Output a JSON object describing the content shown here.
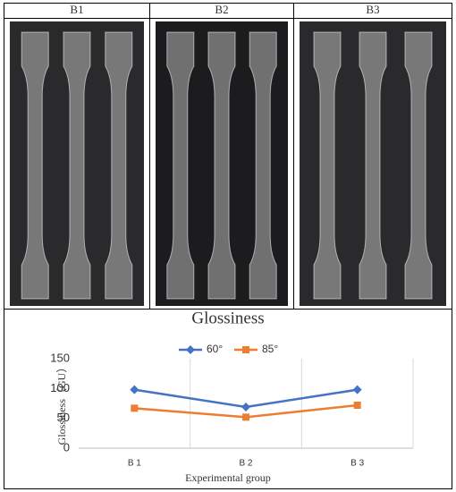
{
  "panels": [
    "B1",
    "B2",
    "B3"
  ],
  "chart_data": {
    "type": "line",
    "title": "Glossiness",
    "x_label": "Experimental group",
    "y_label": "Glossiness（GU）",
    "categories": [
      "B 1",
      "B 2",
      "B 3"
    ],
    "series": [
      {
        "name": "60°",
        "color": "#4472c4",
        "marker": "diamond",
        "values": [
          98,
          69,
          98
        ]
      },
      {
        "name": "85°",
        "color": "#ed7d31",
        "marker": "square",
        "values": [
          67,
          52,
          72
        ]
      }
    ],
    "ylim": [
      0,
      150
    ],
    "yticks": [
      0,
      50,
      100,
      150
    ],
    "grid": true,
    "legend": "top"
  }
}
